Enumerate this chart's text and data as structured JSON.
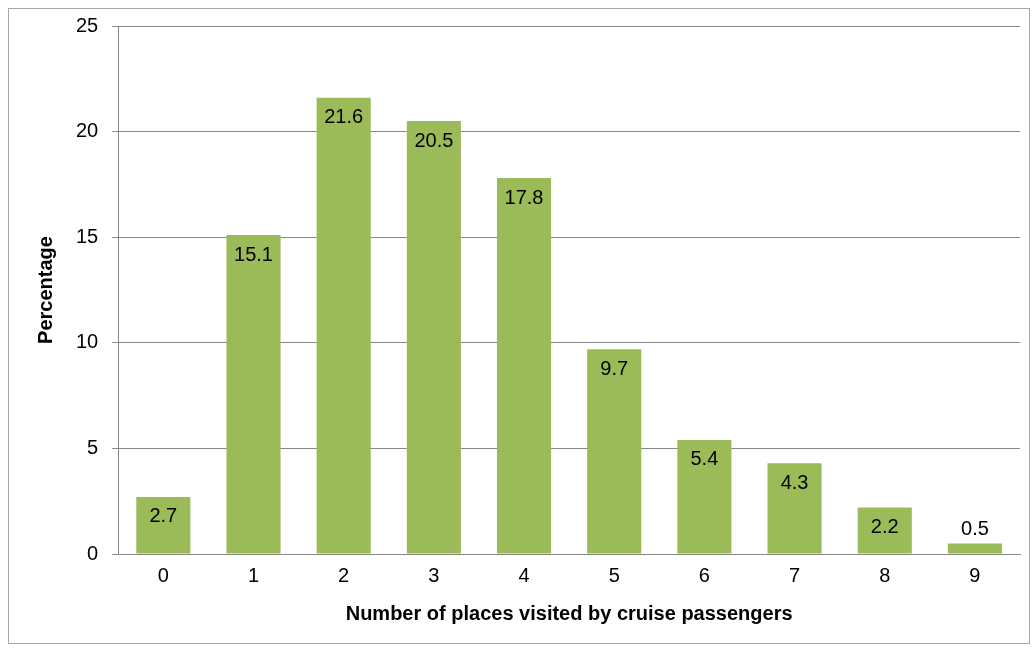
{
  "chart_data": {
    "type": "bar",
    "xlabel": "Number of places visited by cruise passengers",
    "ylabel": "Percentage",
    "categories": [
      "0",
      "1",
      "2",
      "3",
      "4",
      "5",
      "6",
      "7",
      "8",
      "9"
    ],
    "values": [
      2.7,
      15.1,
      21.6,
      20.5,
      17.8,
      9.7,
      5.4,
      4.3,
      2.2,
      0.5
    ],
    "color": "#9bbb59",
    "ylim": [
      0,
      25
    ],
    "yticks": [
      0,
      5,
      10,
      15,
      20,
      25
    ],
    "grid": "y",
    "legend": false,
    "data_labels": true
  }
}
